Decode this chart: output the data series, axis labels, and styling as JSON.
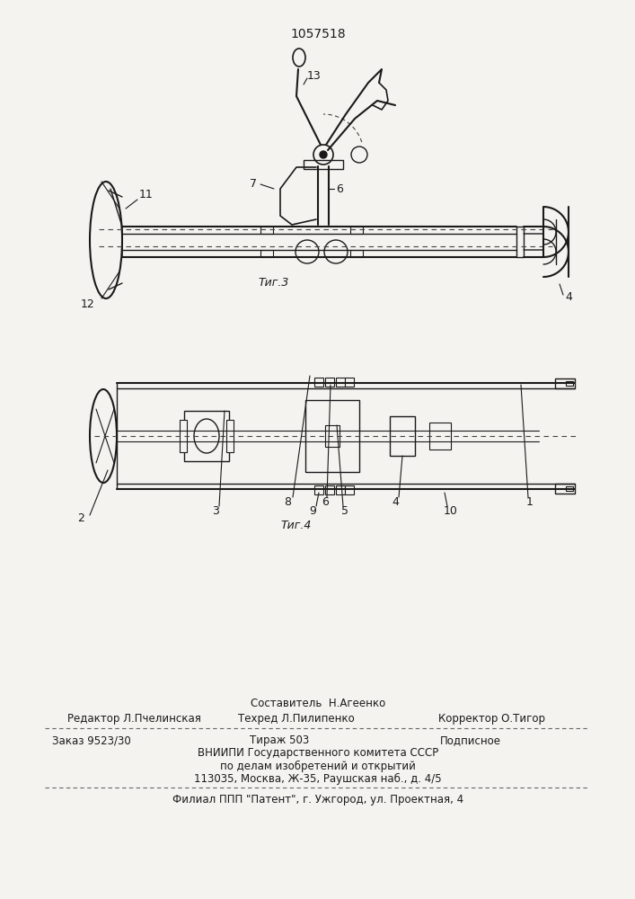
{
  "patent_number": "1057518",
  "bg": "#f5f3f0",
  "lc": "#1a1a1a",
  "dc": "#444444",
  "fig3_caption": "Τиг.3",
  "fig4_caption": "Τиг.4",
  "footer": {
    "compositor": "Составитель  Н.Агеенко",
    "row1": "Редактор Л.Пчелинская",
    "row1b": "Техред Л.Пилипенко",
    "row1c": "Корректор О.Тигор",
    "zakaz": "Заказ 9523/30",
    "tirazh": "Тираж 503",
    "podp": "Подписное",
    "vniip1": "ВНИИПИ Государственного комитета СССР",
    "vniip2": "по делам изобретений и открытий",
    "vniip3": "113035, Москва, Ж-35, Раушская наб., д. 4/5",
    "filial": "Филиал ППП \"Патент\", г. Ужгород, ул. Проектная, 4"
  }
}
